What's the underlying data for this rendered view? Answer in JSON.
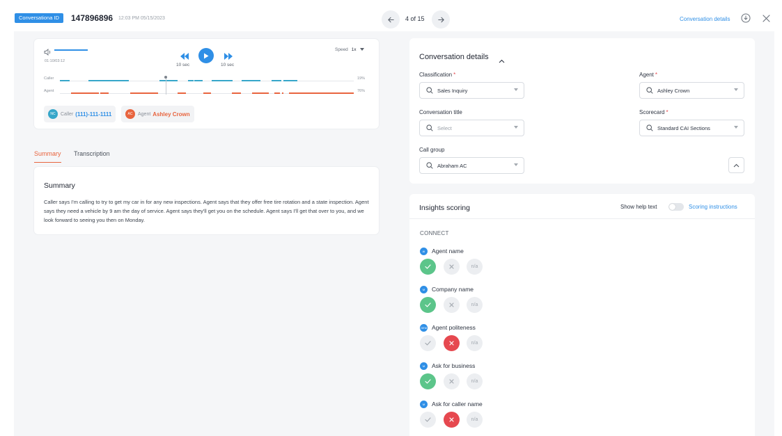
{
  "header": {
    "conv_badge": "Conversationa ID",
    "conv_id": "147896896",
    "timestamp": "12:03 PM 05/15/2023",
    "pager": "4 of 15",
    "details_link": "Conversation details"
  },
  "player": {
    "time": "01:10/03:12",
    "skip_back": "10 sec",
    "skip_forward": "10 sec",
    "speed_label": "Speed",
    "speed_value": "1x",
    "caller_label": "Caller",
    "caller_pct": "19%",
    "agent_label": "Agent",
    "agent_pct": "76%",
    "caller_chip": {
      "initials": "NC",
      "role": "Caller",
      "value": "(111)-111-1111"
    },
    "agent_chip": {
      "initials": "AC",
      "role": "Agent",
      "value": "Ashley Crown"
    }
  },
  "tabs": {
    "summary": "Summary",
    "transcription": "Transcription"
  },
  "summary": {
    "title": "Summary",
    "text": "Caller says I'm calling to try to get my car in for any new inspections. Agent says that they offer free tire rotation and a state inspection. Agent says they need a vehicle by 9 am the day of service. Agent says they'll get you on the schedule. Agent says I'll get that over to you, and we look forward to seeing you then on Monday."
  },
  "details": {
    "title": "Conversation details",
    "classification_label": "Classification",
    "classification_value": "Sales Inquiry",
    "agent_label": "Agent",
    "agent_value": "Ashley Crown",
    "title_label": "Conversation title",
    "title_placeholder": "Select",
    "scorecard_label": "Scorecard",
    "scorecard_value": "Standard CAI Sections",
    "callgroup_label": "Call group",
    "callgroup_value": "Abraham AC",
    "required_mark": "*"
  },
  "insights": {
    "title": "Insights scoring",
    "help_text": "Show help text",
    "scoring_link": "Scoring instructions",
    "section": "CONNECT",
    "na_label": "n/a",
    "criteria": [
      {
        "badge": "AI",
        "name": "Agent name",
        "score": "yes"
      },
      {
        "badge": "M",
        "name": "Company name",
        "score": "yes"
      },
      {
        "badge": "GEM",
        "name": "Agent politeness",
        "score": "no"
      },
      {
        "badge": "M",
        "name": "Ask for business",
        "score": "yes"
      },
      {
        "badge": "M",
        "name": "Ask for caller name",
        "score": "no"
      }
    ]
  },
  "colors": {
    "accent": "#2f8fe6",
    "agent": "#e8643e",
    "caller": "#36a6c9",
    "pass": "#5cc58a",
    "fail": "#e6484f"
  }
}
